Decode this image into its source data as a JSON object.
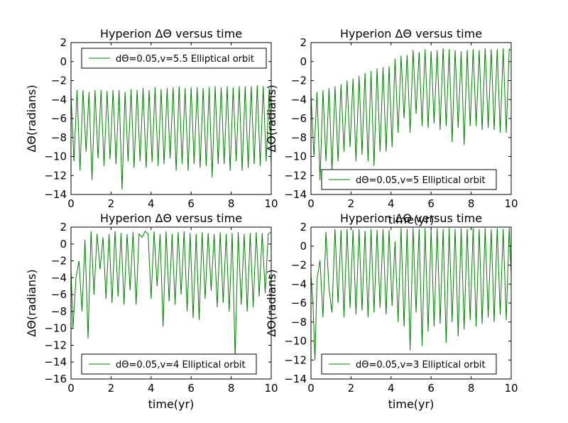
{
  "chart_data": [
    {
      "type": "line",
      "title": "Hyperion  ΔΘ versus time",
      "xlabel": "",
      "ylabel": "ΔΘ(radians)",
      "xlim": [
        0,
        10
      ],
      "ylim": [
        -14,
        2
      ],
      "xticks": [
        "0",
        "2",
        "4",
        "6",
        "8",
        "10"
      ],
      "yticks": [
        "2",
        "0",
        "−2",
        "−4",
        "−6",
        "−8",
        "−10",
        "−12",
        "−14"
      ],
      "legend_position": "top",
      "color": "#008000",
      "series": [
        {
          "name": "dΘ=0.05,v=5.5 Elliptical orbit",
          "x": [
            0,
            0.15,
            0.3,
            0.45,
            0.6,
            0.75,
            0.9,
            1.05,
            1.2,
            1.35,
            1.5,
            1.65,
            1.8,
            1.95,
            2.1,
            2.25,
            2.4,
            2.55,
            2.7,
            2.85,
            3.0,
            3.15,
            3.3,
            3.45,
            3.6,
            3.75,
            3.9,
            4.05,
            4.2,
            4.35,
            4.5,
            4.65,
            4.8,
            4.95,
            5.1,
            5.25,
            5.4,
            5.55,
            5.7,
            5.85,
            6.0,
            6.15,
            6.3,
            6.45,
            6.6,
            6.75,
            6.9,
            7.05,
            7.2,
            7.35,
            7.5,
            7.65,
            7.8,
            7.95,
            8.1,
            8.25,
            8.4,
            8.55,
            8.7,
            8.85,
            9.0,
            9.15,
            9.3,
            9.45,
            9.6,
            9.75,
            9.9,
            10.0
          ],
          "y": [
            -3.5,
            -10.5,
            -3,
            -11.5,
            -3,
            -9.5,
            -3.2,
            -12.5,
            -3,
            -10.2,
            -3,
            -11,
            -3.1,
            -10.3,
            -3,
            -10.8,
            -3,
            -13.5,
            -3.2,
            -10.5,
            -2.9,
            -11.2,
            -3,
            -10.5,
            -2.8,
            -11.2,
            -3,
            -10.6,
            -2.7,
            -11,
            -2.9,
            -10.8,
            -2.8,
            -10.2,
            -2.7,
            -11.5,
            -2.6,
            -10.8,
            -2.8,
            -11.5,
            -2.7,
            -10.8,
            -2.7,
            -11.2,
            -2.8,
            -11,
            -2.7,
            -12.2,
            -2.6,
            -10.8,
            -2.7,
            -10.8,
            -2.6,
            -11.5,
            -2.7,
            -10.5,
            -2.6,
            -11.5,
            -2.6,
            -11.2,
            -2.6,
            -10.8,
            -2.5,
            -11,
            -2.6,
            -10.5,
            -2.8,
            -11
          ]
        }
      ]
    },
    {
      "type": "line",
      "title": "Hyperion  ΔΘ versus time",
      "xlabel": "time(yr)",
      "ylabel": "ΔΘ(radians)",
      "xlim": [
        0,
        10
      ],
      "ylim": [
        -14,
        2
      ],
      "xticks": [
        "0",
        "2",
        "4",
        "6",
        "8",
        "10"
      ],
      "yticks": [
        "2",
        "0",
        "−2",
        "−4",
        "−6",
        "−8",
        "−10",
        "−12",
        "−14"
      ],
      "legend_position": "bottom",
      "color": "#008000",
      "series": [
        {
          "name": "dΘ=0.05,v=5 Elliptical orbit",
          "x": [
            0,
            0.15,
            0.3,
            0.45,
            0.6,
            0.75,
            0.9,
            1.05,
            1.2,
            1.35,
            1.5,
            1.65,
            1.8,
            1.95,
            2.1,
            2.25,
            2.4,
            2.55,
            2.7,
            2.85,
            3.0,
            3.15,
            3.3,
            3.45,
            3.6,
            3.75,
            3.9,
            4.05,
            4.2,
            4.35,
            4.5,
            4.65,
            4.8,
            4.95,
            5.1,
            5.25,
            5.4,
            5.55,
            5.7,
            5.85,
            6.0,
            6.15,
            6.3,
            6.45,
            6.6,
            6.75,
            6.9,
            7.05,
            7.2,
            7.35,
            7.5,
            7.65,
            7.8,
            7.95,
            8.1,
            8.25,
            8.4,
            8.55,
            8.7,
            8.85,
            9.0,
            9.15,
            9.3,
            9.45,
            9.6,
            9.75,
            9.9,
            10.0
          ],
          "y": [
            -3.5,
            -10,
            -3.2,
            -12.5,
            -3,
            -10.5,
            -2.8,
            -11.5,
            -2.6,
            -10.5,
            -2.4,
            -9.5,
            -2,
            -9,
            -1.8,
            -10.5,
            -1.5,
            -9.8,
            -1.2,
            -10.5,
            -1,
            -11,
            -0.7,
            -9.5,
            -0.6,
            -9.5,
            -0.5,
            -9,
            0.3,
            -7.5,
            0.6,
            -6,
            0.7,
            -7.5,
            1.2,
            -5.5,
            1,
            -6.8,
            1.3,
            -7,
            1.1,
            -6.5,
            1.2,
            -7.2,
            1.4,
            -6.8,
            1.3,
            -8.5,
            1.2,
            -7,
            1.1,
            -8.8,
            1.2,
            -6.8,
            1.3,
            -6.8,
            1.2,
            -7.2,
            1.4,
            -7,
            1.3,
            -7.2,
            1.3,
            -7.5,
            1.4,
            -7.5,
            1.3,
            1.2
          ]
        }
      ]
    },
    {
      "type": "line",
      "title": "Hyperion  ΔΘ versus time",
      "xlabel": "time(yr)",
      "ylabel": "ΔΘ(radians)",
      "xlim": [
        0,
        10
      ],
      "ylim": [
        -16,
        2
      ],
      "xticks": [
        "0",
        "2",
        "4",
        "6",
        "8",
        "10"
      ],
      "yticks": [
        "2",
        "0",
        "−2",
        "−4",
        "−6",
        "−8",
        "−10",
        "−12",
        "−14",
        "−16"
      ],
      "legend_position": "bottom",
      "color": "#008000",
      "series": [
        {
          "name": "dΘ=0.05,v=4 Elliptical orbit",
          "x": [
            0,
            0.1,
            0.25,
            0.4,
            0.55,
            0.7,
            0.85,
            1.0,
            1.15,
            1.3,
            1.45,
            1.6,
            1.75,
            1.9,
            2.05,
            2.2,
            2.35,
            2.5,
            2.65,
            2.8,
            2.95,
            3.1,
            3.25,
            3.4,
            3.55,
            3.7,
            3.85,
            4.0,
            4.15,
            4.3,
            4.45,
            4.6,
            4.75,
            4.9,
            5.05,
            5.2,
            5.35,
            5.5,
            5.65,
            5.8,
            5.95,
            6.1,
            6.25,
            6.4,
            6.55,
            6.7,
            6.85,
            7.0,
            7.15,
            7.3,
            7.45,
            7.6,
            7.75,
            7.9,
            8.05,
            8.2,
            8.35,
            8.5,
            8.65,
            8.8,
            8.95,
            9.1,
            9.25,
            9.4,
            9.55,
            9.7,
            9.85,
            10.0
          ],
          "y": [
            -3,
            -10,
            -4,
            -2,
            -8,
            0.5,
            -11.2,
            1.5,
            -6,
            1.2,
            -3,
            0.8,
            -6.5,
            1.2,
            -7,
            1.5,
            -6.2,
            1.3,
            -7.2,
            1.2,
            -5.5,
            1.4,
            -7.2,
            1.2,
            0.8,
            1.5,
            1.2,
            -6.5,
            1.5,
            -5,
            1.2,
            -9.8,
            1.5,
            -6.8,
            1.2,
            -7.2,
            1.4,
            -6,
            1.5,
            -8,
            1.3,
            -8.8,
            1.2,
            -9,
            1.4,
            -6.5,
            1.3,
            -5.5,
            1.2,
            -7.5,
            1.4,
            -7,
            1.2,
            -8,
            1.3,
            -13.5,
            1.4,
            -7.2,
            1.2,
            -8,
            1.3,
            -7.5,
            1.4,
            -6.2,
            1.3,
            -5.8,
            1.2,
            1.4
          ]
        }
      ]
    },
    {
      "type": "line",
      "title": "Hyperion  ΔΘ versus time",
      "xlabel": "time(yr)",
      "ylabel": "ΔΘ(radians)",
      "xlim": [
        0,
        10
      ],
      "ylim": [
        -14,
        2
      ],
      "xticks": [
        "0",
        "2",
        "4",
        "6",
        "8",
        "10"
      ],
      "yticks": [
        "2",
        "0",
        "−2",
        "−4",
        "−6",
        "−8",
        "−10",
        "−12",
        "−14"
      ],
      "legend_position": "bottom",
      "color": "#008000",
      "series": [
        {
          "name": "dΘ=0.05,v=3 Elliptical orbit",
          "x": [
            0,
            0.1,
            0.2,
            0.3,
            0.45,
            0.6,
            0.75,
            0.9,
            1.05,
            1.2,
            1.35,
            1.5,
            1.65,
            1.8,
            1.95,
            2.1,
            2.25,
            2.4,
            2.55,
            2.7,
            2.85,
            3.0,
            3.15,
            3.3,
            3.45,
            3.6,
            3.75,
            3.9,
            4.05,
            4.2,
            4.35,
            4.5,
            4.65,
            4.8,
            4.95,
            5.1,
            5.25,
            5.4,
            5.55,
            5.7,
            5.85,
            6.0,
            6.15,
            6.3,
            6.45,
            6.6,
            6.75,
            6.9,
            7.05,
            7.2,
            7.35,
            7.5,
            7.65,
            7.8,
            7.95,
            8.1,
            8.25,
            8.4,
            8.55,
            8.7,
            8.85,
            9.0,
            9.15,
            9.3,
            9.45,
            9.6,
            9.75,
            9.9,
            10.0
          ],
          "y": [
            -3,
            -6,
            -12,
            -3.5,
            -1.5,
            -7.5,
            1.5,
            -4.5,
            -7,
            1.8,
            -6,
            1.7,
            -7.5,
            1.8,
            -6.5,
            1.7,
            -7.2,
            1.8,
            -6.8,
            1.6,
            -7.5,
            1.8,
            -7,
            1.7,
            -6.5,
            1.8,
            -7.2,
            1.7,
            -6.3,
            0.5,
            -8,
            1.9,
            -8.5,
            1.8,
            -11,
            1.9,
            -7,
            1.8,
            -10.5,
            1.9,
            -9,
            1.8,
            -8.5,
            1.9,
            -8.2,
            1.8,
            -10.2,
            1.9,
            -8,
            1.8,
            -9.5,
            1.9,
            -8.8,
            1.8,
            -7.8,
            1.9,
            -8.5,
            1.8,
            -8.2,
            1.9,
            -7.5,
            1.8,
            -8,
            1.9,
            -7.2,
            1.8,
            -7.8,
            1.9,
            -3
          ]
        }
      ]
    }
  ]
}
